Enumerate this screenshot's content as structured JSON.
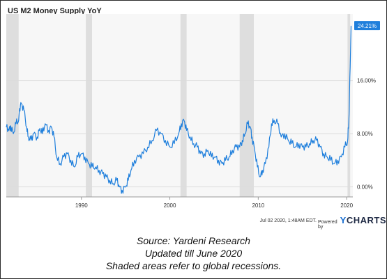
{
  "chart_data": {
    "type": "line",
    "title": "US M2 Money Supply YoY",
    "xlabel": "",
    "ylabel": "",
    "xlim": [
      1981.5,
      2020.7
    ],
    "ylim": [
      -1.5,
      26
    ],
    "x_ticks": [
      "1990",
      "2000",
      "2010",
      "2020"
    ],
    "y_ticks": [
      "0.00%",
      "8.00%",
      "16.00%"
    ],
    "grid": true,
    "recessions": [
      [
        1981.5,
        1982.9
      ],
      [
        1990.5,
        1991.2
      ],
      [
        2001.2,
        2001.9
      ],
      [
        2007.9,
        2009.5
      ],
      [
        2020.1,
        2020.4
      ]
    ],
    "last_value_label": "24.21%",
    "series": [
      {
        "color": "#1f7fdc",
        "x": [
          1981.5,
          1981.8,
          1982.0,
          1982.3,
          1982.6,
          1982.9,
          1983.0,
          1983.2,
          1983.5,
          1983.8,
          1984.0,
          1984.3,
          1984.6,
          1985.0,
          1985.3,
          1985.6,
          1985.9,
          1986.3,
          1986.6,
          1986.9,
          1987.2,
          1987.6,
          1988.0,
          1988.4,
          1988.8,
          1989.2,
          1989.6,
          1990.0,
          1990.4,
          1990.8,
          1991.2,
          1991.6,
          1992.0,
          1992.4,
          1992.8,
          1993.2,
          1993.6,
          1994.0,
          1994.3,
          1994.6,
          1995.0,
          1995.3,
          1995.6,
          1996.0,
          1996.5,
          1997.0,
          1997.5,
          1998.0,
          1998.5,
          1999.0,
          1999.5,
          2000.0,
          2000.5,
          2001.0,
          2001.3,
          2001.6,
          2001.9,
          2002.3,
          2002.7,
          2003.1,
          2003.5,
          2003.9,
          2004.3,
          2004.7,
          2005.1,
          2005.5,
          2005.9,
          2006.3,
          2006.7,
          2007.1,
          2007.5,
          2007.9,
          2008.2,
          2008.5,
          2008.8,
          2009.1,
          2009.3,
          2009.6,
          2009.9,
          2010.2,
          2010.5,
          2010.8,
          2011.2,
          2011.5,
          2011.8,
          2012.2,
          2012.6,
          2013.0,
          2013.4,
          2013.8,
          2014.2,
          2014.6,
          2015.0,
          2015.4,
          2015.8,
          2016.2,
          2016.6,
          2017.0,
          2017.4,
          2017.8,
          2018.2,
          2018.6,
          2019.0,
          2019.4,
          2019.8,
          2020.1,
          2020.25,
          2020.4,
          2020.5
        ],
        "y": [
          9.0,
          8.5,
          9.2,
          8.0,
          9.5,
          10.0,
          11.8,
          12.5,
          11.5,
          9.0,
          7.5,
          7.0,
          8.0,
          7.5,
          8.8,
          8.0,
          9.5,
          8.5,
          9.0,
          7.5,
          4.5,
          3.5,
          4.5,
          5.0,
          4.0,
          3.0,
          4.5,
          5.0,
          4.5,
          3.5,
          3.0,
          3.0,
          2.5,
          2.0,
          1.5,
          1.0,
          0.5,
          1.0,
          0.0,
          -0.5,
          0.0,
          1.0,
          2.5,
          4.0,
          4.5,
          5.0,
          6.0,
          7.0,
          8.5,
          8.0,
          7.0,
          6.0,
          6.5,
          8.0,
          9.5,
          10.0,
          8.5,
          7.5,
          6.5,
          6.0,
          5.0,
          5.0,
          5.5,
          4.5,
          4.5,
          4.0,
          3.5,
          4.0,
          4.5,
          5.5,
          6.0,
          6.0,
          7.0,
          8.0,
          9.5,
          9.0,
          7.5,
          5.5,
          3.0,
          1.5,
          2.5,
          3.5,
          6.0,
          9.5,
          10.0,
          9.5,
          7.5,
          8.0,
          7.0,
          6.5,
          6.0,
          6.5,
          6.0,
          6.0,
          6.5,
          7.0,
          7.0,
          6.0,
          5.0,
          4.5,
          4.0,
          3.5,
          4.0,
          4.5,
          6.0,
          6.8,
          10.0,
          18.0,
          24.21
        ]
      }
    ]
  },
  "footer": {
    "date_text": "Jul 02 2020, 1:48AM EDT.",
    "powered_by": "Powered by",
    "brand_y": "Y",
    "brand_rest": "CHARTS"
  },
  "caption": {
    "line1": "Source: Yardeni Research",
    "line2": "Updated till June 2020",
    "line3": "Shaded areas refer to global recessions."
  }
}
